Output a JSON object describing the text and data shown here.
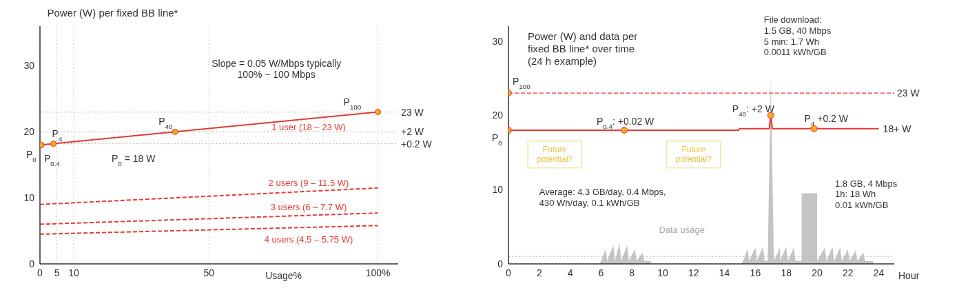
{
  "chart_data": [
    {
      "type": "line",
      "title": "Power (W) per fixed BB line*",
      "xlabel": "Usage%",
      "xlim": [
        0,
        106
      ],
      "xticks": [
        0,
        5,
        10,
        50,
        {
          "value": 100,
          "label": "100%"
        }
      ],
      "ylim": [
        0,
        36
      ],
      "yticks": [
        0,
        10,
        20,
        30
      ],
      "grid": "x",
      "series": [
        {
          "name": "1 user (18 – 23 W)",
          "type": "line",
          "color": "#e53935",
          "marker": "circle",
          "line_style": "solid",
          "x": [
            0,
            0.4,
            4,
            40,
            100
          ],
          "values": [
            18,
            18,
            18.2,
            20,
            23
          ]
        },
        {
          "name": "2 users (9 – 11.5 W)",
          "type": "line",
          "color": "#e53935",
          "line_style": "dashed",
          "x": [
            0,
            100
          ],
          "values": [
            9,
            11.5
          ]
        },
        {
          "name": "3 users (6 – 7.7 W)",
          "type": "line",
          "color": "#e53935",
          "line_style": "dashed",
          "x": [
            0,
            100
          ],
          "values": [
            6,
            7.7
          ]
        },
        {
          "name": "4 users (4.5 – 5.75 W)",
          "type": "line",
          "color": "#e53935",
          "line_style": "dashed",
          "x": [
            0,
            100
          ],
          "values": [
            4.5,
            5.8
          ]
        }
      ],
      "ref_lines": [
        {
          "axis": "y",
          "value": 23,
          "label": "23 W",
          "color": "#bbbbbb",
          "line_style": "dotted"
        },
        {
          "axis": "y",
          "value": 20,
          "label": "+2 W",
          "color": "#bbbbbb",
          "line_style": "dotted"
        },
        {
          "axis": "y",
          "value": 18.2,
          "label": "+0.2 W",
          "color": "#bbbbbb",
          "line_style": "dotted"
        }
      ],
      "annotations": [
        {
          "text": "P$_{0}$",
          "x": 0,
          "y": 18
        },
        {
          "text": "P$_{0.4}$",
          "x": 0.4,
          "y": 18
        },
        {
          "text": "P$_{4}$",
          "x": 4,
          "y": 18.2
        },
        {
          "text": "P$_{40}$",
          "x": 40,
          "y": 20
        },
        {
          "text": "P$_{100}$",
          "x": 100,
          "y": 23
        },
        "P$_{0}$ = 18 W",
        "Slope = 0.05 W/Mbps typically\n100% ~ 100 Mbps"
      ]
    },
    {
      "type": "line",
      "title": "Power (W) and data per\nfixed BB line* over time\n(24 h example)",
      "xlabel": "Hour",
      "xlim": [
        0,
        25
      ],
      "xticks": [
        0,
        2,
        4,
        6,
        8,
        10,
        12,
        14,
        16,
        18,
        20,
        22,
        24
      ],
      "ylim": [
        0,
        32
      ],
      "yticks": [
        0,
        10,
        20,
        30
      ],
      "series": [
        {
          "type": "area",
          "color": "#b5b5b5",
          "x": [
            5.9,
            6,
            6.3,
            6.4,
            6.8,
            6.9,
            7.2,
            7.3,
            7.7,
            7.8,
            8.2,
            8.3,
            8.7,
            8.8,
            9.2,
            9.3,
            15.1,
            15.2,
            15.5,
            15.6,
            16,
            16.1,
            16.5,
            16.6,
            16.8,
            17,
            17.2,
            17.6,
            17.6,
            18,
            18.1,
            18.5,
            18.6,
            19,
            19,
            20,
            20,
            20.5,
            20.6,
            21,
            21.1,
            21.5,
            21.6,
            22,
            22.1,
            22.5,
            22.6,
            23,
            23.1,
            23.6,
            23.7
          ],
          "values": [
            0,
            0.4,
            2,
            0.4,
            2.5,
            0.4,
            2.8,
            0.4,
            2.5,
            0.4,
            2,
            0.4,
            1.5,
            0.4,
            0.4,
            0,
            0,
            0.4,
            2,
            0.4,
            2.2,
            0.4,
            2.3,
            0.4,
            0.4,
            25,
            0.4,
            2.2,
            0.4,
            2.3,
            0.4,
            2.2,
            0.4,
            0.4,
            9.5,
            9.5,
            0.4,
            2.2,
            0.4,
            2.3,
            0.4,
            2.2,
            0.4,
            2,
            0.4,
            1.8,
            0.4,
            1.5,
            0.4,
            0.4,
            0
          ]
        },
        {
          "type": "line",
          "color": "#e53935",
          "line_style": "solid",
          "marker": "none",
          "x": [
            0,
            6,
            7.5,
            9,
            14.9,
            15,
            16.9,
            17,
            17.1,
            19.5,
            19.8,
            20.1,
            24
          ],
          "values": [
            18,
            18,
            18,
            18,
            18,
            18.2,
            18.2,
            20,
            18.2,
            18.2,
            18.4,
            18.2,
            18.2
          ]
        },
        {
          "type": "scatter",
          "color": "#f5a623",
          "marker": "circle",
          "x": [
            0,
            0,
            7.5,
            17,
            19.8
          ],
          "values": [
            23,
            18,
            18,
            20,
            18.2
          ]
        }
      ],
      "ref_lines": [
        {
          "axis": "y",
          "value": 23,
          "label": "23 W",
          "color": "#e53935",
          "line_style": "dashed"
        },
        {
          "axis": "y",
          "value": 1,
          "color": "#bbbbbb",
          "line_style": "dotted"
        }
      ],
      "annotations": [
        {
          "text": "P$_{100}$",
          "x": 0,
          "y": 23
        },
        {
          "text": "P$_{0}$",
          "x": 0,
          "y": 18
        },
        {
          "text": "P$_{0.4}$: +0.02 W",
          "x": 7.5,
          "y": 18
        },
        {
          "text": "P$_{40}$: +2 W",
          "x": 17,
          "y": 20
        },
        {
          "text": "P$_{4}$ +0.2 W",
          "x": 19.8,
          "y": 18.2
        },
        {
          "text": "18+ W",
          "x": 24,
          "y": 18.2
        },
        {
          "text": "File download:\n1.5 GB, 40 Mbps\n5 min: 1.7 Wh\n0.0011 kWh/GB",
          "x": 17,
          "y": 25
        },
        {
          "text": "1.8 GB, 4 Mbps\n1h: 18 Wh\n0.01 kWh/GB",
          "x": 20,
          "y": 9.5
        },
        "Average: 4.3 GB/day, 0.4 Mbps,\n430 Wh/day, 0.1 kWh/GB",
        "Data usage",
        "Future\npotential?",
        "Future\npotential?"
      ]
    }
  ]
}
